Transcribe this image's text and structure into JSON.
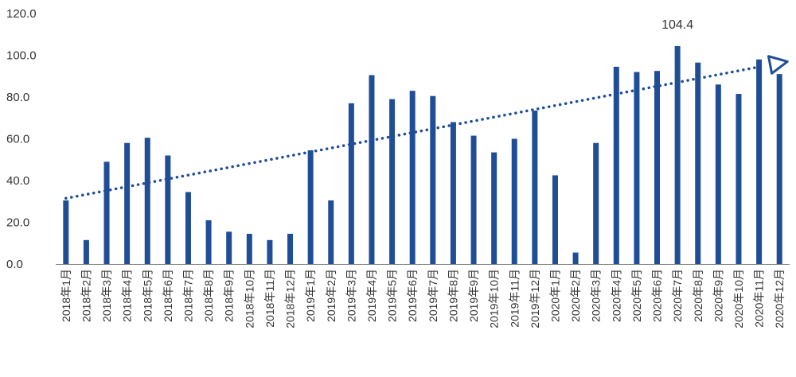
{
  "colors": {
    "bar": "#1F4E96",
    "trend": "#1F4E96",
    "axis": "#888888",
    "text": "#333333"
  },
  "chart_data": {
    "type": "bar",
    "categories": [
      "2018年1月",
      "2018年2月",
      "2018年3月",
      "2018年4月",
      "2018年5月",
      "2018年6月",
      "2018年7月",
      "2018年8月",
      "2018年9月",
      "2018年10月",
      "2018年11月",
      "2018年12月",
      "2019年1月",
      "2019年2月",
      "2019年3月",
      "2019年4月",
      "2019年5月",
      "2019年6月",
      "2019年7月",
      "2019年8月",
      "2019年9月",
      "2019年10月",
      "2019年11月",
      "2019年12月",
      "2020年1月",
      "2020年2月",
      "2020年3月",
      "2020年4月",
      "2020年5月",
      "2020年6月",
      "2020年7月",
      "2020年8月",
      "2020年9月",
      "2020年10月",
      "2020年11月",
      "2020年12月"
    ],
    "values": [
      30.5,
      11.5,
      49.0,
      58.0,
      60.5,
      52.0,
      34.5,
      21.0,
      15.5,
      14.5,
      11.5,
      14.5,
      54.5,
      30.5,
      77.0,
      90.5,
      79.0,
      83.0,
      80.5,
      68.0,
      61.5,
      53.5,
      60.0,
      73.5,
      42.5,
      5.5,
      58.0,
      94.5,
      92.0,
      92.5,
      104.4,
      96.5,
      86.0,
      81.5,
      98.0,
      91.0
    ],
    "ylim": [
      0,
      120
    ],
    "yticks": [
      "0.0",
      "20.0",
      "40.0",
      "60.0",
      "80.0",
      "100.0",
      "120.0"
    ],
    "grid": false,
    "legend": "none",
    "trendline": {
      "type": "linear",
      "style": "dotted",
      "arrow": "end",
      "start_value": 31.5,
      "end_value": 96.0
    },
    "annotations": [
      {
        "category": "2020年7月",
        "text": "104.4"
      }
    ]
  }
}
